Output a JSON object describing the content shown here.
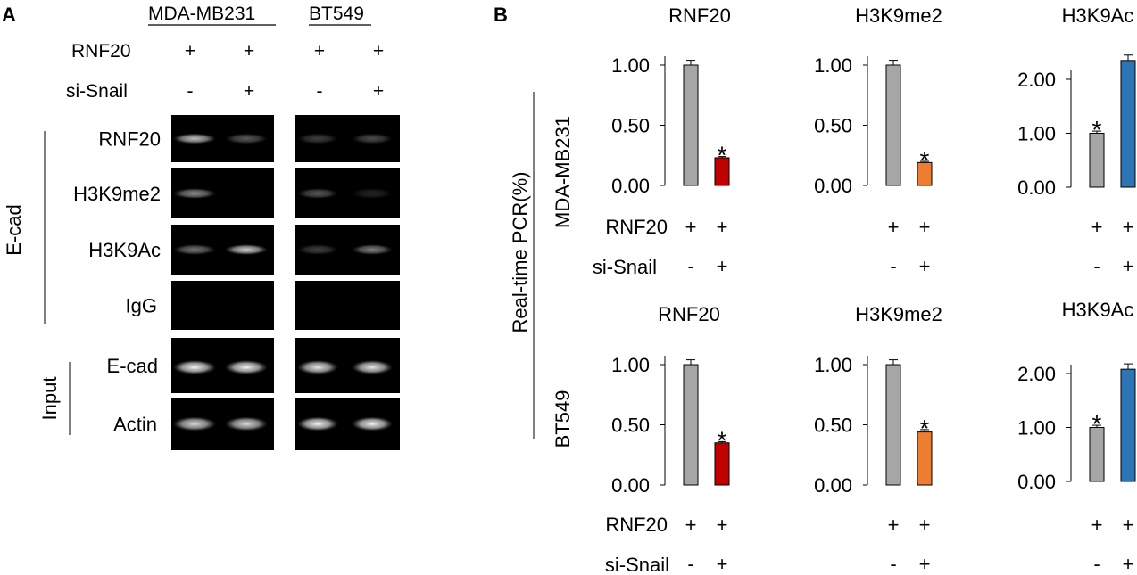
{
  "panel_a": {
    "letter": "A",
    "cell_lines": [
      "MDA-MB231",
      "BT549"
    ],
    "rnf20_label": "RNF20",
    "sisnail_label": "si-Snail",
    "rnf20_signs": [
      "+",
      "+",
      "+",
      "+"
    ],
    "sisnail_signs": [
      "-",
      "+",
      "-",
      "+"
    ],
    "chip_group_label": "E-cad",
    "chip_rows": [
      "RNF20",
      "H3K9me2",
      "H3K9Ac",
      "IgG"
    ],
    "input_group_label": "Input",
    "input_rows": [
      "E-cad",
      "Actin"
    ],
    "band_intensity": {
      "RNF20": [
        0.75,
        0.35,
        0.25,
        0.3
      ],
      "H3K9me2": [
        0.55,
        0.0,
        0.35,
        0.15
      ],
      "H3K9Ac": [
        0.45,
        0.8,
        0.25,
        0.5
      ],
      "IgG": [
        0.0,
        0.0,
        0.0,
        0.0
      ],
      "E-cad": [
        0.95,
        0.95,
        0.9,
        0.9
      ],
      "Actin": [
        0.85,
        0.85,
        0.95,
        0.95
      ]
    }
  },
  "panel_b": {
    "letter": "B",
    "y_axis_title": "Real-time PCR(%)",
    "row_labels": [
      "MDA-MB231",
      "BT549"
    ],
    "rnf20_label": "RNF20",
    "sisnail_label": "si-Snail",
    "rnf20_signs": [
      "+",
      "+"
    ],
    "sisnail_signs": [
      "-",
      "+"
    ],
    "star": "*"
  },
  "chart_data": [
    {
      "type": "bar",
      "title": "RNF20",
      "row": "MDA-MB231",
      "ylim": [
        0,
        1.0
      ],
      "yticks": [
        "0.00",
        "0.50",
        "1.00"
      ],
      "values": [
        1.0,
        0.23
      ],
      "errors": [
        0.04,
        0.01
      ],
      "colors": [
        "#A6A6A6",
        "#C00000"
      ],
      "stars": [
        false,
        true
      ]
    },
    {
      "type": "bar",
      "title": "H3K9me2",
      "row": "MDA-MB231",
      "ylim": [
        0,
        1.0
      ],
      "yticks": [
        "0.00",
        "0.50",
        "1.00"
      ],
      "values": [
        1.0,
        0.19
      ],
      "errors": [
        0.04,
        0.01
      ],
      "colors": [
        "#A6A6A6",
        "#ED7D31"
      ],
      "stars": [
        false,
        true
      ]
    },
    {
      "type": "bar",
      "title": "H3K9Ac",
      "row": "MDA-MB231",
      "ylim": [
        0,
        2.0
      ],
      "yticks": [
        "0.00",
        "1.00",
        "2.00"
      ],
      "values": [
        1.0,
        2.35
      ],
      "errors": [
        0.04,
        0.1
      ],
      "colors": [
        "#A6A6A6",
        "#2E75B6"
      ],
      "stars": [
        true,
        false
      ]
    },
    {
      "type": "bar",
      "title": "RNF20",
      "row": "BT549",
      "ylim": [
        0,
        1.0
      ],
      "yticks": [
        "0.00",
        "0.50",
        "1.00"
      ],
      "values": [
        1.0,
        0.35
      ],
      "errors": [
        0.04,
        0.01
      ],
      "colors": [
        "#A6A6A6",
        "#C00000"
      ],
      "stars": [
        false,
        true
      ]
    },
    {
      "type": "bar",
      "title": "H3K9me2",
      "row": "BT549",
      "ylim": [
        0,
        1.0
      ],
      "yticks": [
        "0.00",
        "0.50",
        "1.00"
      ],
      "values": [
        1.0,
        0.44
      ],
      "errors": [
        0.04,
        0.02
      ],
      "colors": [
        "#A6A6A6",
        "#ED7D31"
      ],
      "stars": [
        false,
        true
      ]
    },
    {
      "type": "bar",
      "title": "H3K9Ac",
      "row": "BT549",
      "ylim": [
        0,
        2.0
      ],
      "yticks": [
        "0.00",
        "1.00",
        "2.00"
      ],
      "values": [
        1.0,
        2.08
      ],
      "errors": [
        0.04,
        0.1
      ],
      "colors": [
        "#A6A6A6",
        "#2E75B6"
      ],
      "stars": [
        true,
        false
      ]
    }
  ]
}
